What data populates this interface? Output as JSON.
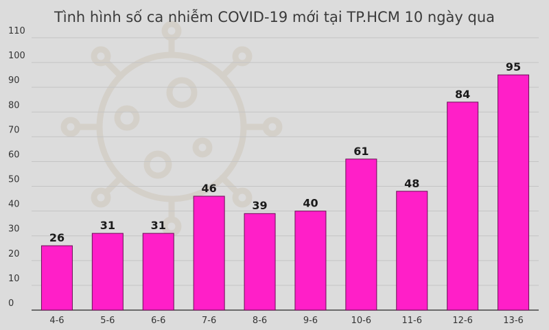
{
  "chart_data": {
    "type": "bar",
    "title": "Tình hình số ca nhiễm COVID-19 mới tại TP.HCM 10 ngày qua",
    "categories": [
      "4-6",
      "5-6",
      "6-6",
      "7-6",
      "8-6",
      "9-6",
      "10-6",
      "11-6",
      "12-6",
      "13-6"
    ],
    "values": [
      26,
      31,
      31,
      46,
      39,
      40,
      61,
      48,
      84,
      95
    ],
    "ylim": [
      0,
      110
    ],
    "yticks": [
      0,
      10,
      20,
      30,
      40,
      50,
      60,
      70,
      80,
      90,
      100,
      110
    ],
    "grid": true,
    "bar_color": "#ff1fc8",
    "background": "#dcdcdc",
    "watermark": "virus-icon"
  }
}
